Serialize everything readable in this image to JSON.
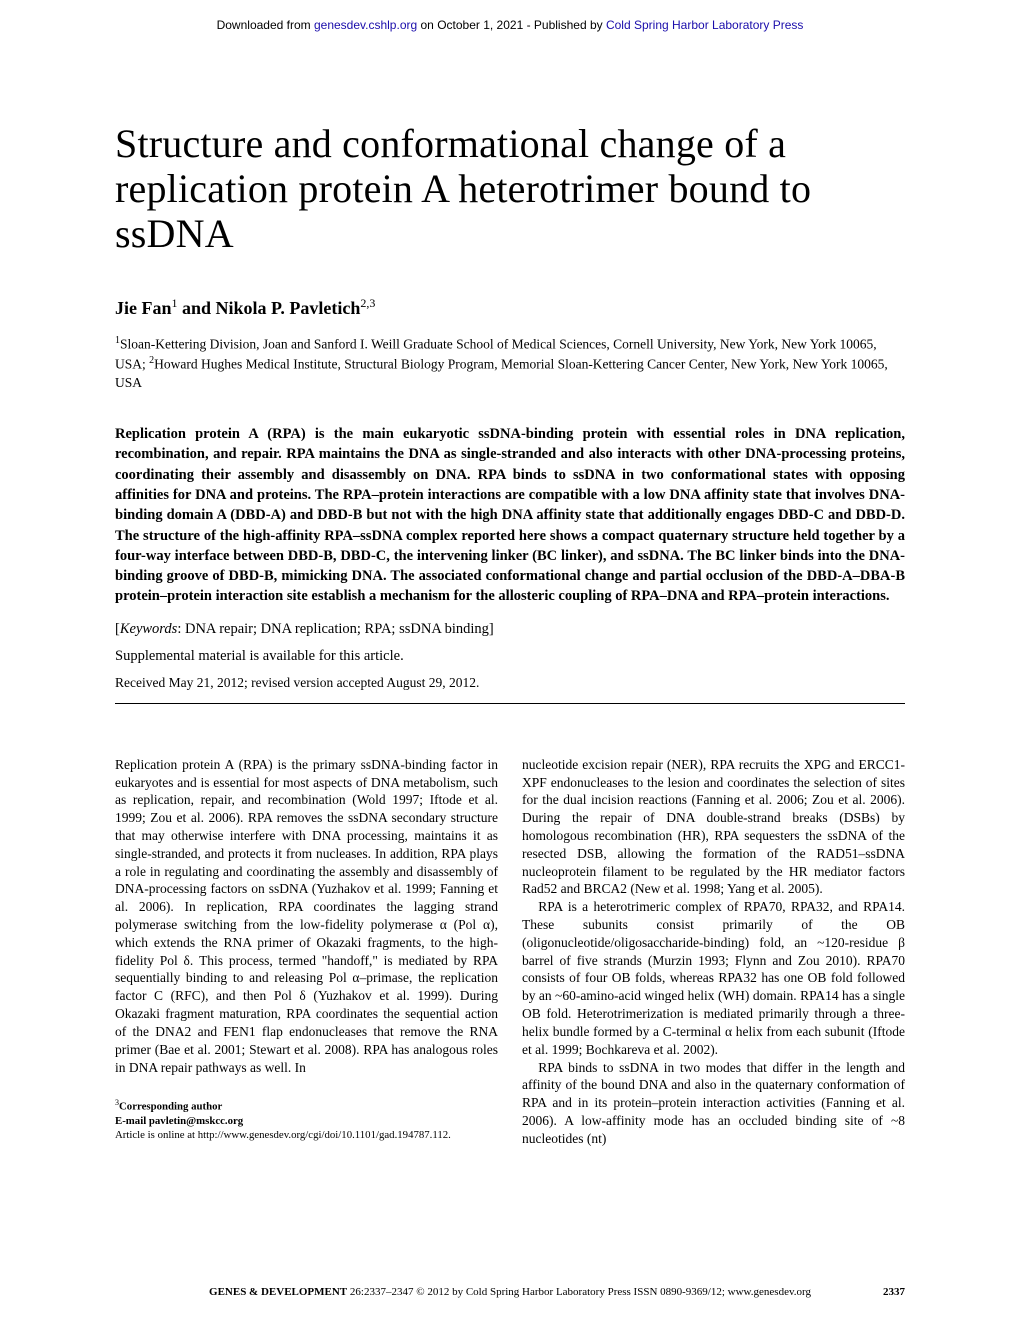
{
  "download_header": {
    "prefix": "Downloaded from ",
    "link1_text": "genesdev.cshlp.org",
    "mid": " on October 1, 2021 - Published by ",
    "link2_text": "Cold Spring Harbor Laboratory Press"
  },
  "title": "Structure and conformational change of a replication protein A heterotrimer bound to ssDNA",
  "authors_html": "Jie Fan<sup>1</sup> and Nikola P. Pavletich<sup>2,3</sup>",
  "affiliations_html": "<sup>1</sup>Sloan-Kettering Division, Joan and Sanford I. Weill Graduate School of Medical Sciences, Cornell University, New York, New York 10065, USA; <sup>2</sup>Howard Hughes Medical Institute, Structural Biology Program, Memorial Sloan-Kettering Cancer Center, New York, New York 10065, USA",
  "abstract": "Replication protein A (RPA) is the main eukaryotic ssDNA-binding protein with essential roles in DNA replication, recombination, and repair. RPA maintains the DNA as single-stranded and also interacts with other DNA-processing proteins, coordinating their assembly and disassembly on DNA. RPA binds to ssDNA in two conformational states with opposing affinities for DNA and proteins. The RPA–protein interactions are compatible with a low DNA affinity state that involves DNA-binding domain A (DBD-A) and DBD-B but not with the high DNA affinity state that additionally engages DBD-C and DBD-D. The structure of the high-affinity RPA–ssDNA complex reported here shows a compact quaternary structure held together by a four-way interface between DBD-B, DBD-C, the intervening linker (BC linker), and ssDNA. The BC linker binds into the DNA-binding groove of DBD-B, mimicking DNA. The associated conformational change and partial occlusion of the DBD-A–DBA-B protein–protein interaction site establish a mechanism for the allosteric coupling of RPA–DNA and RPA–protein interactions.",
  "keywords_label": "Keywords",
  "keywords": ": DNA repair; DNA replication; RPA; ssDNA binding]",
  "keywords_prefix": "[",
  "supplemental": "Supplemental material is available for this article.",
  "received": "Received May 21, 2012; revised version accepted August 29, 2012.",
  "body": {
    "col1_p1": "Replication protein A (RPA) is the primary ssDNA-binding factor in eukaryotes and is essential for most aspects of DNA metabolism, such as replication, repair, and recombination (Wold 1997; Iftode et al. 1999; Zou et al. 2006). RPA removes the ssDNA secondary structure that may otherwise interfere with DNA processing, maintains it as single-stranded, and protects it from nucleases. In addition, RPA plays a role in regulating and coordinating the assembly and disassembly of DNA-processing factors on ssDNA (Yuzhakov et al. 1999; Fanning et al. 2006). In replication, RPA coordinates the lagging strand polymerase switching from the low-fidelity polymerase α (Pol α), which extends the RNA primer of Okazaki fragments, to the high-fidelity Pol δ. This process, termed \"handoff,\" is mediated by RPA sequentially binding to and releasing Pol α–primase, the replication factor C (RFC), and then Pol δ (Yuzhakov et al. 1999). During Okazaki fragment maturation, RPA coordinates the sequential action of the DNA2 and FEN1 flap endonucleases that remove the RNA primer (Bae et al. 2001; Stewart et al. 2008). RPA has analogous roles in DNA repair pathways as well. In",
    "col2_p1": "nucleotide excision repair (NER), RPA recruits the XPG and ERCC1-XPF endonucleases to the lesion and coordinates the selection of sites for the dual incision reactions (Fanning et al. 2006; Zou et al. 2006). During the repair of DNA double-strand breaks (DSBs) by homologous recombination (HR), RPA sequesters the ssDNA of the resected DSB, allowing the formation of the RAD51–ssDNA nucleoprotein filament to be regulated by the HR mediator factors Rad52 and BRCA2 (New et al. 1998; Yang et al. 2005).",
    "col2_p2": "RPA is a heterotrimeric complex of RPA70, RPA32, and RPA14. These subunits consist primarily of the OB (oligonucleotide/oligosaccharide-binding) fold, an ~120-residue β barrel of five strands (Murzin 1993; Flynn and Zou 2010). RPA70 consists of four OB folds, whereas RPA32 has one OB fold followed by an ~60-amino-acid winged helix (WH) domain. RPA14 has a single OB fold. Heterotrimerization is mediated primarily through a three-helix bundle formed by a C-terminal α helix from each subunit (Iftode et al. 1999; Bochkareva et al. 2002).",
    "col2_p3": "RPA binds to ssDNA in two modes that differ in the length and affinity of the bound DNA and also in the quaternary conformation of RPA and in its protein–protein interaction activities (Fanning et al. 2006). A low-affinity mode has an occluded binding site of ~8 nucleotides (nt)"
  },
  "footnotes": {
    "corresponding": "Corresponding author",
    "email": "E-mail pavletin@mskcc.org",
    "article_online": "Article is online at http://www.genesdev.org/cgi/doi/10.1101/gad.194787.112."
  },
  "footer": {
    "journal": "GENES & DEVELOPMENT",
    "vol": " 26:2337–2347 ",
    "copyright": "© 2012 by Cold Spring Harbor Laboratory Press ISSN 0890-9369/12; www.genesdev.org",
    "page": "2337"
  }
}
